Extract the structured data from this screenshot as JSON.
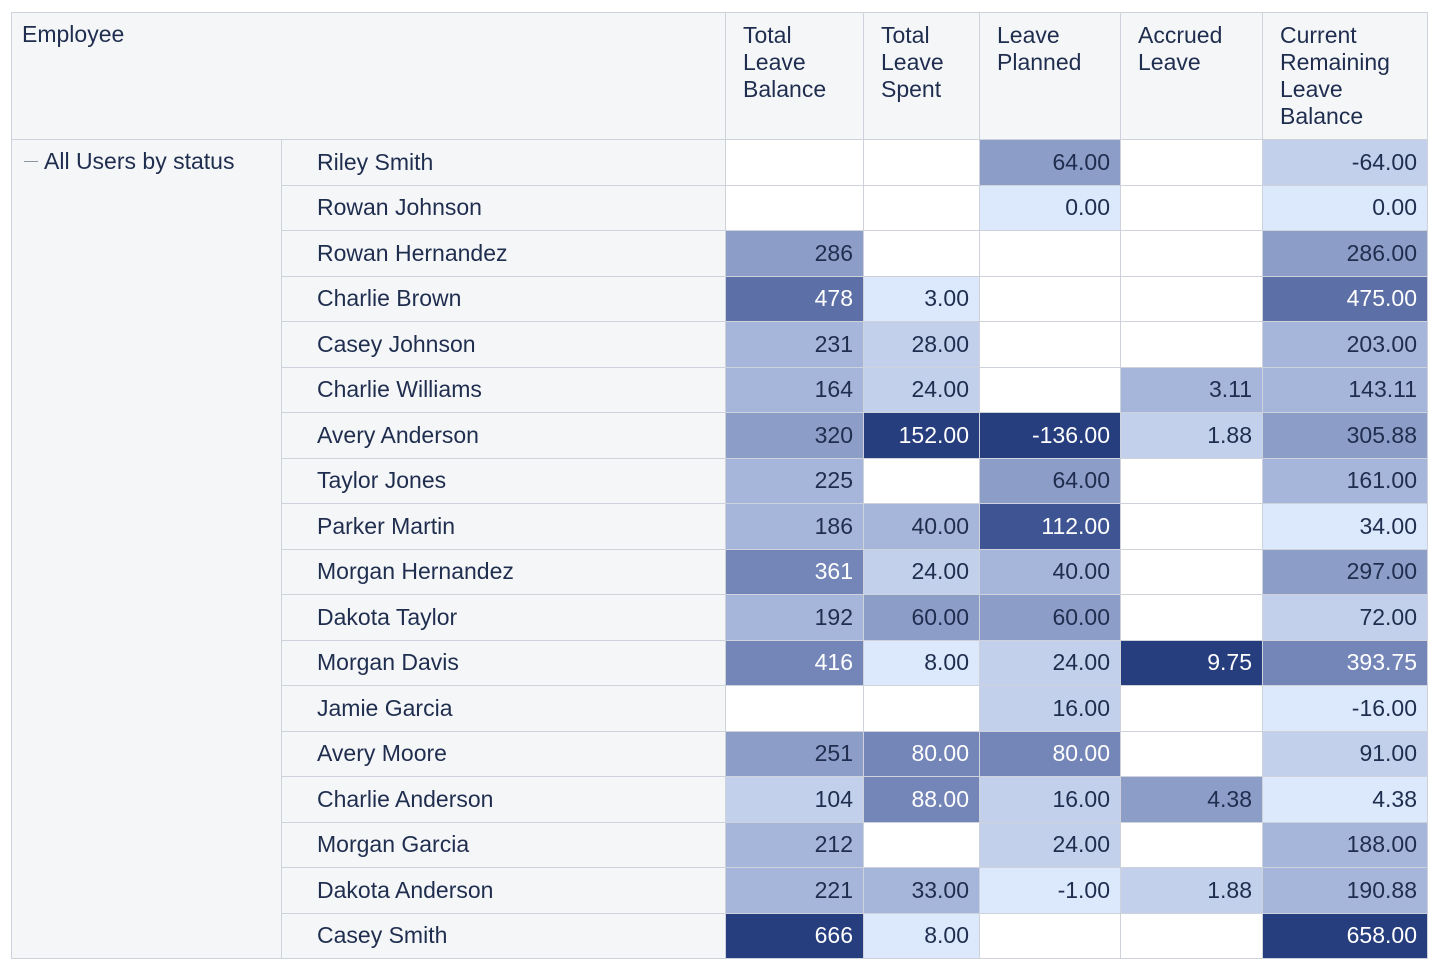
{
  "header": {
    "employee": "Employee",
    "columns": [
      "Total Leave Balance",
      "Total Leave Spent",
      "Leave Planned",
      "Accrued Leave",
      "Current Remaining Leave Balance"
    ]
  },
  "group": {
    "label": "All Users by status"
  },
  "rows": [
    {
      "name": "Riley Smith",
      "values": [
        "",
        "",
        "64.00",
        "",
        "-64.00"
      ]
    },
    {
      "name": "Rowan Johnson",
      "values": [
        "",
        "",
        "0.00",
        "",
        "0.00"
      ]
    },
    {
      "name": "Rowan Hernandez",
      "values": [
        "286",
        "",
        "",
        "",
        "286.00"
      ]
    },
    {
      "name": "Charlie Brown",
      "values": [
        "478",
        "3.00",
        "",
        "",
        "475.00"
      ]
    },
    {
      "name": "Casey Johnson",
      "values": [
        "231",
        "28.00",
        "",
        "",
        "203.00"
      ]
    },
    {
      "name": "Charlie Williams",
      "values": [
        "164",
        "24.00",
        "",
        "3.11",
        "143.11"
      ]
    },
    {
      "name": "Avery Anderson",
      "values": [
        "320",
        "152.00",
        "-136.00",
        "1.88",
        "305.88"
      ]
    },
    {
      "name": "Taylor Jones",
      "values": [
        "225",
        "",
        "64.00",
        "",
        "161.00"
      ]
    },
    {
      "name": "Parker Martin",
      "values": [
        "186",
        "40.00",
        "112.00",
        "",
        "34.00"
      ]
    },
    {
      "name": "Morgan Hernandez",
      "values": [
        "361",
        "24.00",
        "40.00",
        "",
        "297.00"
      ]
    },
    {
      "name": "Dakota Taylor",
      "values": [
        "192",
        "60.00",
        "60.00",
        "",
        "72.00"
      ]
    },
    {
      "name": "Morgan Davis",
      "values": [
        "416",
        "8.00",
        "24.00",
        "9.75",
        "393.75"
      ]
    },
    {
      "name": "Jamie Garcia",
      "values": [
        "",
        "",
        "16.00",
        "",
        "-16.00"
      ]
    },
    {
      "name": "Avery Moore",
      "values": [
        "251",
        "80.00",
        "80.00",
        "",
        "91.00"
      ]
    },
    {
      "name": "Charlie Anderson",
      "values": [
        "104",
        "88.00",
        "16.00",
        "4.38",
        "4.38"
      ]
    },
    {
      "name": "Morgan Garcia",
      "values": [
        "212",
        "",
        "24.00",
        "",
        "188.00"
      ]
    },
    {
      "name": "Dakota Anderson",
      "values": [
        "221",
        "33.00",
        "-1.00",
        "1.88",
        "190.88"
      ]
    },
    {
      "name": "Casey Smith",
      "values": [
        "666",
        "8.00",
        "",
        "",
        "658.00"
      ]
    }
  ],
  "colors": {
    "scale": [
      "#dce8fb",
      "#c2d0ec",
      "#a6b6da",
      "#8c9dc8",
      "#7486b8",
      "#5c6fa6",
      "#3e5493",
      "#263d7e"
    ],
    "text_dark": "#1f2d4e",
    "text_light": "#ffffff",
    "header_bg": "#f5f6f8",
    "grid": "#cdd2db"
  }
}
